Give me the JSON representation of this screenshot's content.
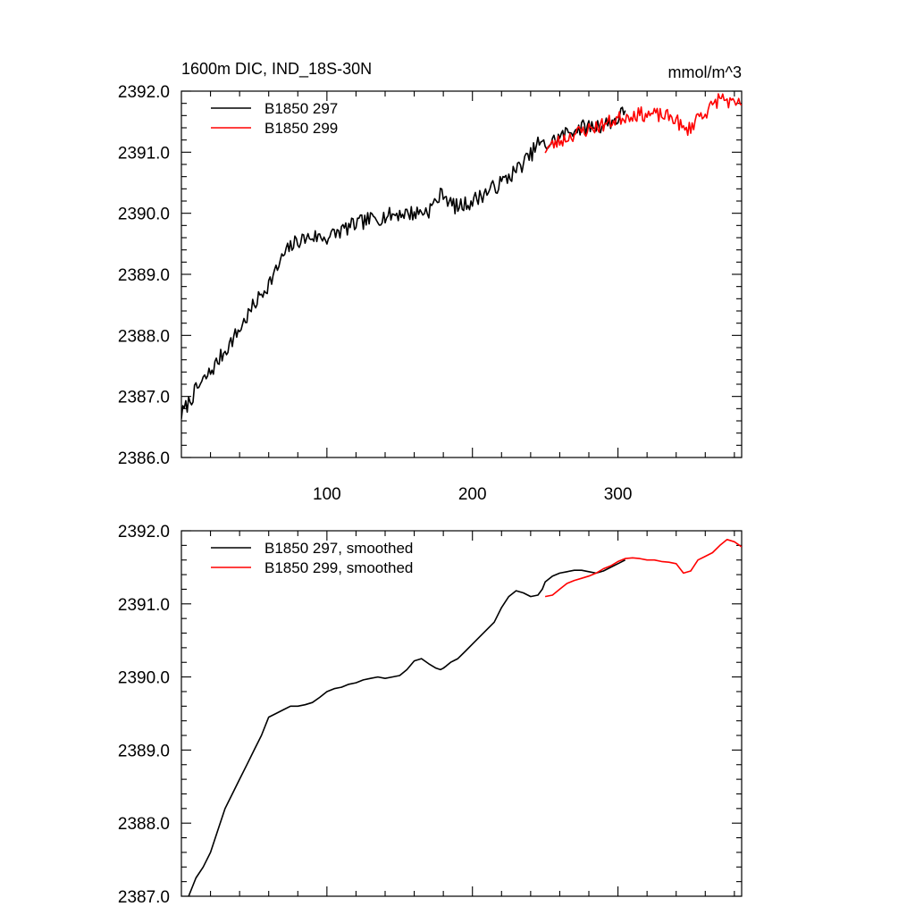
{
  "chart_data": [
    {
      "type": "line",
      "title_left": "1600m DIC, IND_18S-30N",
      "title_right": "mmol/m^3",
      "xlabel": "",
      "ylabel": "",
      "xlim": [
        0,
        385
      ],
      "ylim": [
        2386.0,
        2392.0
      ],
      "x_ticks": [
        100,
        200,
        300
      ],
      "x_tick_labels": [
        "100",
        "200",
        "300"
      ],
      "y_ticks": [
        2386.0,
        2387.0,
        2388.0,
        2389.0,
        2390.0,
        2391.0,
        2392.0
      ],
      "y_tick_labels": [
        "2386.0",
        "2387.0",
        "2388.0",
        "2389.0",
        "2390.0",
        "2391.0",
        "2392.0"
      ],
      "legend_position": "top-left",
      "series": [
        {
          "name": "B1850 297",
          "color": "#000000",
          "noise": 0.13,
          "seed": 7,
          "x": [
            0,
            10,
            20,
            30,
            40,
            50,
            60,
            65,
            70,
            75,
            80,
            90,
            100,
            110,
            120,
            130,
            140,
            150,
            160,
            170,
            175,
            180,
            185,
            190,
            200,
            210,
            220,
            230,
            240,
            245,
            250,
            260,
            270,
            280,
            290,
            300,
            305
          ],
          "y": [
            2386.7,
            2387.1,
            2387.4,
            2387.75,
            2388.1,
            2388.5,
            2388.85,
            2389.05,
            2389.3,
            2389.45,
            2389.55,
            2389.62,
            2389.6,
            2389.72,
            2389.82,
            2389.9,
            2389.95,
            2390.0,
            2390.0,
            2390.05,
            2390.2,
            2390.35,
            2390.15,
            2390.1,
            2390.2,
            2390.35,
            2390.5,
            2390.7,
            2390.95,
            2391.15,
            2391.1,
            2391.25,
            2391.38,
            2391.42,
            2391.45,
            2391.55,
            2391.7
          ]
        },
        {
          "name": "B1850 299",
          "color": "#ff0000",
          "noise": 0.12,
          "seed": 23,
          "x": [
            250,
            260,
            270,
            280,
            290,
            300,
            310,
            320,
            330,
            340,
            345,
            350,
            355,
            360,
            365,
            370,
            375,
            380,
            385
          ],
          "y": [
            2391.05,
            2391.18,
            2391.3,
            2391.38,
            2391.45,
            2391.55,
            2391.62,
            2391.62,
            2391.6,
            2391.55,
            2391.35,
            2391.4,
            2391.6,
            2391.65,
            2391.75,
            2391.9,
            2391.85,
            2391.75,
            2391.8
          ]
        }
      ]
    },
    {
      "type": "line",
      "xlim": [
        0,
        385
      ],
      "ylim": [
        2387.0,
        2392.0
      ],
      "y_ticks": [
        2387.0,
        2388.0,
        2389.0,
        2390.0,
        2391.0,
        2392.0
      ],
      "y_tick_labels": [
        "2387.0",
        "2388.0",
        "2389.0",
        "2390.0",
        "2391.0",
        "2392.0"
      ],
      "legend_position": "top-left",
      "series": [
        {
          "name": "B1850 297, smoothed",
          "color": "#000000",
          "x": [
            5,
            10,
            15,
            20,
            25,
            30,
            35,
            40,
            45,
            50,
            55,
            60,
            65,
            70,
            75,
            80,
            85,
            90,
            95,
            100,
            105,
            110,
            115,
            120,
            125,
            130,
            135,
            140,
            145,
            150,
            155,
            160,
            165,
            170,
            175,
            178,
            180,
            182,
            185,
            190,
            195,
            200,
            205,
            210,
            215,
            220,
            225,
            230,
            235,
            240,
            245,
            248,
            250,
            255,
            260,
            265,
            270,
            275,
            280,
            285,
            290,
            295,
            300,
            305
          ],
          "y": [
            2387.0,
            2387.25,
            2387.4,
            2387.6,
            2387.9,
            2388.2,
            2388.4,
            2388.6,
            2388.8,
            2389.0,
            2389.2,
            2389.45,
            2389.5,
            2389.55,
            2389.6,
            2389.6,
            2389.62,
            2389.65,
            2389.72,
            2389.8,
            2389.84,
            2389.86,
            2389.9,
            2389.92,
            2389.96,
            2389.98,
            2390.0,
            2389.98,
            2390.0,
            2390.02,
            2390.1,
            2390.22,
            2390.25,
            2390.18,
            2390.12,
            2390.1,
            2390.12,
            2390.15,
            2390.2,
            2390.25,
            2390.35,
            2390.45,
            2390.55,
            2390.65,
            2390.75,
            2390.95,
            2391.1,
            2391.18,
            2391.15,
            2391.1,
            2391.12,
            2391.2,
            2391.3,
            2391.38,
            2391.42,
            2391.44,
            2391.46,
            2391.46,
            2391.44,
            2391.42,
            2391.45,
            2391.5,
            2391.55,
            2391.6
          ]
        },
        {
          "name": "B1850 299, smoothed",
          "color": "#ff0000",
          "x": [
            250,
            255,
            260,
            265,
            270,
            275,
            280,
            285,
            290,
            295,
            300,
            305,
            310,
            315,
            320,
            325,
            330,
            335,
            340,
            345,
            350,
            355,
            360,
            365,
            370,
            375,
            380,
            385
          ],
          "y": [
            2391.1,
            2391.12,
            2391.2,
            2391.28,
            2391.32,
            2391.35,
            2391.38,
            2391.42,
            2391.48,
            2391.52,
            2391.58,
            2391.62,
            2391.63,
            2391.62,
            2391.6,
            2391.6,
            2391.58,
            2391.57,
            2391.55,
            2391.42,
            2391.45,
            2391.6,
            2391.65,
            2391.7,
            2391.8,
            2391.88,
            2391.85,
            2391.78
          ]
        }
      ]
    }
  ]
}
